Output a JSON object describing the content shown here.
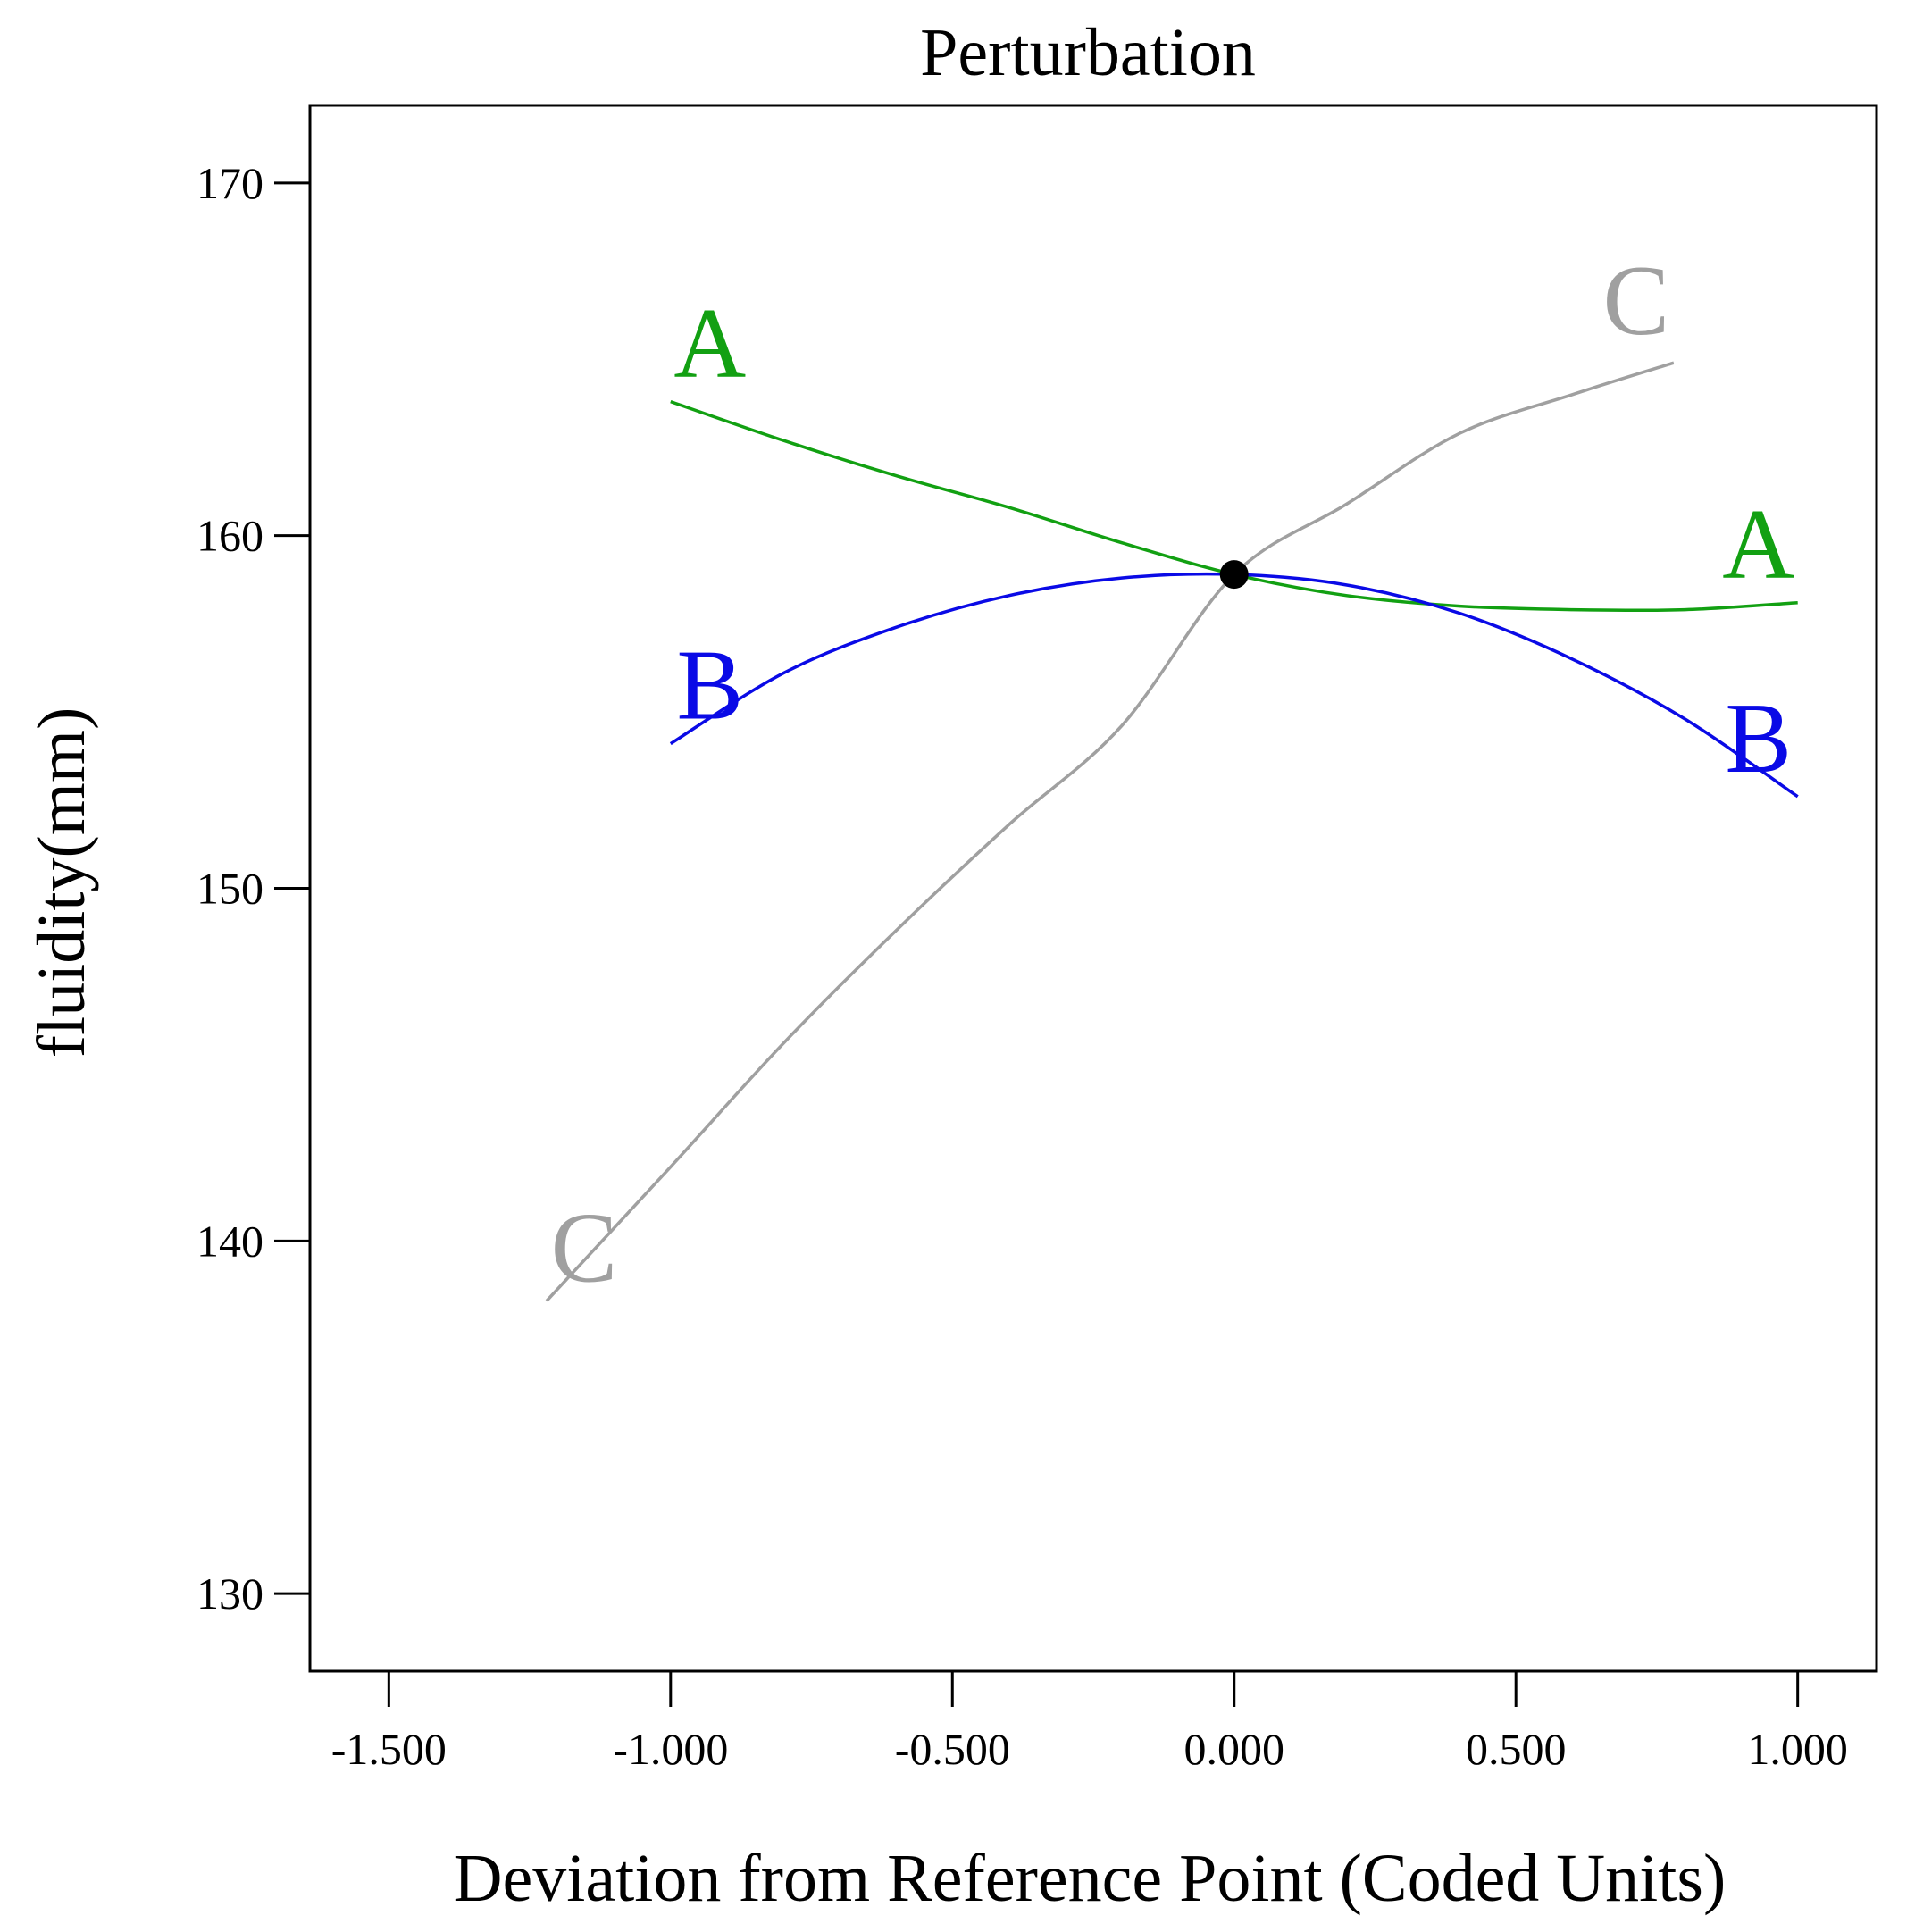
{
  "chart_data": {
    "type": "line",
    "title": "Perturbation",
    "xlabel": "Deviation from Reference Point (Coded Units)",
    "ylabel": "fluidity(mm)",
    "xlim": [
      -1.64,
      1.14
    ],
    "ylim": [
      127.8,
      172.2
    ],
    "xticks": [
      -1.5,
      -1.0,
      -0.5,
      0.0,
      0.5,
      1.0
    ],
    "xtick_labels": [
      "-1.500",
      "-1.000",
      "-0.500",
      "0.000",
      "0.500",
      "1.000"
    ],
    "yticks": [
      130,
      140,
      150,
      160,
      170
    ],
    "ytick_labels": [
      "130",
      "140",
      "150",
      "160",
      "170"
    ],
    "reference_point": {
      "x": 0.0,
      "y": 158.9
    },
    "series": [
      {
        "name": "A",
        "color": "#12a012",
        "x": [
          -1.0,
          -0.8,
          -0.6,
          -0.4,
          -0.2,
          0.0,
          0.2,
          0.4,
          0.6,
          0.8,
          1.0
        ],
        "values": [
          163.8,
          162.7,
          161.7,
          160.8,
          159.8,
          158.9,
          158.3,
          158.0,
          157.9,
          157.9,
          158.1
        ],
        "labels": [
          "A",
          "A"
        ]
      },
      {
        "name": "B",
        "color": "#0a0ae6",
        "x": [
          -1.0,
          -0.8,
          -0.6,
          -0.4,
          -0.2,
          0.0,
          0.2,
          0.4,
          0.6,
          0.8,
          1.0
        ],
        "values": [
          154.1,
          156.1,
          157.4,
          158.3,
          158.8,
          158.9,
          158.6,
          157.8,
          156.5,
          154.8,
          152.6
        ],
        "labels": [
          "B",
          "B"
        ]
      },
      {
        "name": "C",
        "color": "#a0a0a0",
        "x": [
          -1.22,
          -1.0,
          -0.8,
          -0.6,
          -0.4,
          -0.2,
          0.0,
          0.2,
          0.4,
          0.6,
          0.78
        ],
        "values": [
          138.3,
          142.1,
          145.6,
          148.8,
          151.8,
          154.6,
          158.9,
          160.9,
          162.9,
          164.0,
          164.9
        ],
        "labels": [
          "C",
          "C"
        ]
      }
    ]
  }
}
